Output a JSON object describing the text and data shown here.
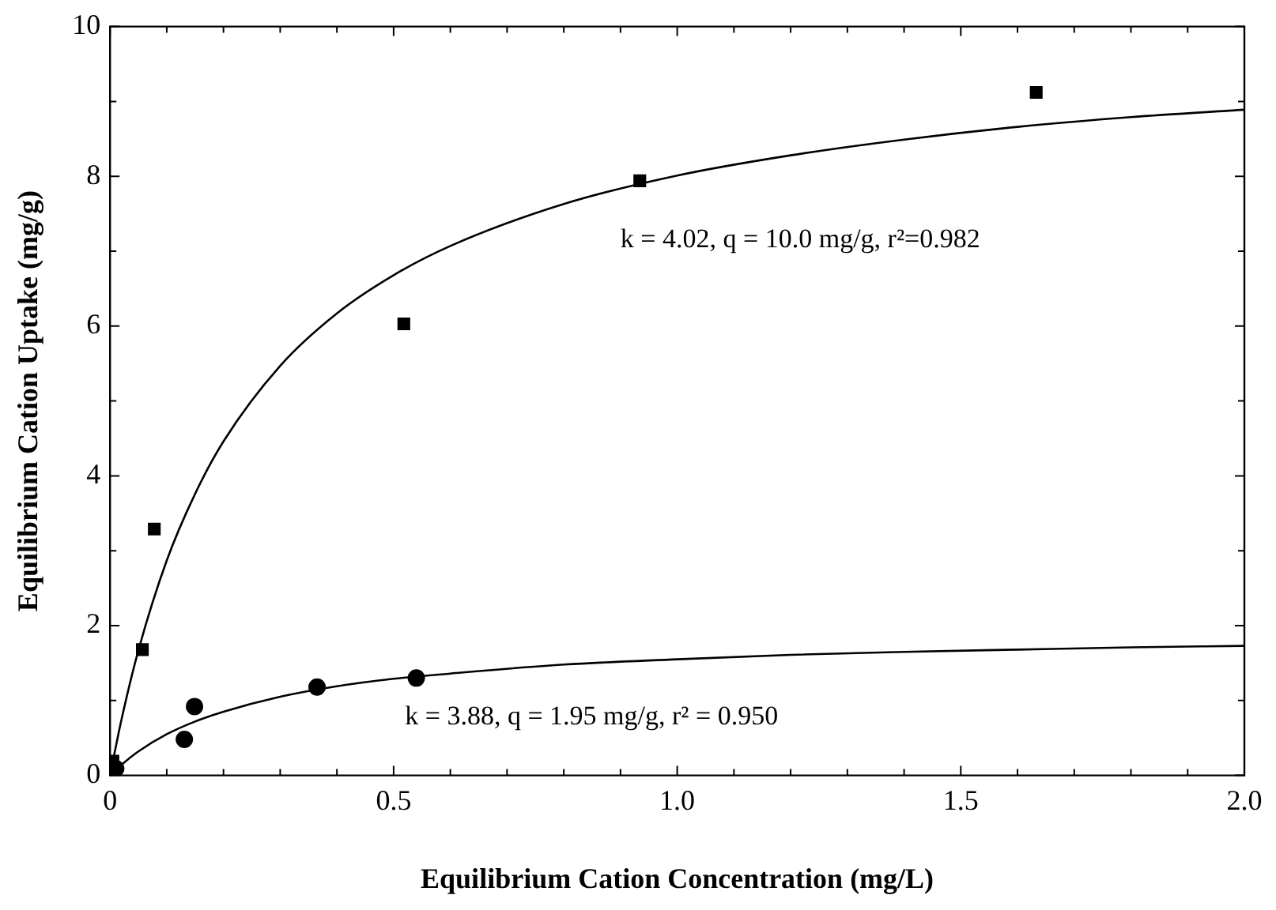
{
  "chart_data": {
    "type": "scatter",
    "xlabel": "Equilibrium Cation Concentration (mg/L)",
    "ylabel": "Equilibrium Cation Uptake (mg/g)",
    "xlim": [
      0,
      2
    ],
    "ylim": [
      0,
      10
    ],
    "xticks": [
      0,
      {
        "value": 0.1,
        "label": null
      },
      {
        "value": 0.2,
        "label": null
      },
      {
        "value": 0.3,
        "label": null
      },
      {
        "value": 0.4,
        "label": null
      },
      0.5,
      {
        "value": 0.6,
        "label": null
      },
      {
        "value": 0.7,
        "label": null
      },
      {
        "value": 0.8,
        "label": null
      },
      {
        "value": 0.9,
        "label": null
      },
      {
        "value": 1,
        "label": "1.0"
      },
      {
        "value": 1.1,
        "label": null
      },
      {
        "value": 1.2,
        "label": null
      },
      {
        "value": 1.3,
        "label": null
      },
      {
        "value": 1.4,
        "label": null
      },
      1.5,
      {
        "value": 1.6,
        "label": null
      },
      {
        "value": 1.7,
        "label": null
      },
      {
        "value": 1.8,
        "label": null
      },
      {
        "value": 1.9,
        "label": null
      },
      {
        "value": 2,
        "label": "2.0"
      }
    ],
    "yticks": [
      0,
      {
        "value": 1,
        "label": null
      },
      2,
      {
        "value": 3,
        "label": null
      },
      4,
      {
        "value": 5,
        "label": null
      },
      6,
      {
        "value": 7,
        "label": null
      },
      8,
      {
        "value": 9,
        "label": null
      },
      10
    ],
    "grid": false,
    "legend": false,
    "annotations": [
      "k = 4.02, q = 10.0 mg/g, r²=0.982",
      "k = 3.88, q = 1.95 mg/g, r² = 0.950"
    ],
    "series": [
      {
        "type": "scatter",
        "marker": "square",
        "color": "#000000",
        "x": [
          0.005,
          0.057,
          0.078,
          0.518,
          0.934,
          1.633
        ],
        "values": [
          0.19,
          1.68,
          3.29,
          6.03,
          7.94,
          9.12
        ]
      },
      {
        "type": "scatter",
        "marker": "circle",
        "color": "#000000",
        "x": [
          0.01,
          0.131,
          0.149,
          0.365,
          0.54
        ],
        "values": [
          0.09,
          0.48,
          0.92,
          1.18,
          1.3
        ]
      },
      {
        "type": "line",
        "marker": "none",
        "line_style": "solid",
        "color": "#000000",
        "x": [
          0,
          0.02,
          0.05,
          0.1,
          0.15,
          0.2,
          0.3,
          0.4,
          0.5,
          0.6,
          0.8,
          1,
          1.2,
          1.4,
          1.6,
          1.8,
          2
        ],
        "values": [
          0,
          0.74,
          1.67,
          2.87,
          3.76,
          4.46,
          5.47,
          6.17,
          6.68,
          7.07,
          7.63,
          8.01,
          8.28,
          8.49,
          8.66,
          8.79,
          8.89
        ]
      },
      {
        "type": "line",
        "marker": "none",
        "line_style": "solid",
        "color": "#000000",
        "x": [
          0,
          0.02,
          0.05,
          0.1,
          0.15,
          0.2,
          0.3,
          0.4,
          0.5,
          0.6,
          0.8,
          1,
          1.2,
          1.4,
          1.6,
          1.8,
          2
        ],
        "values": [
          0,
          0.14,
          0.32,
          0.55,
          0.72,
          0.85,
          1.05,
          1.19,
          1.29,
          1.36,
          1.48,
          1.55,
          1.61,
          1.65,
          1.68,
          1.71,
          1.73
        ]
      }
    ]
  }
}
